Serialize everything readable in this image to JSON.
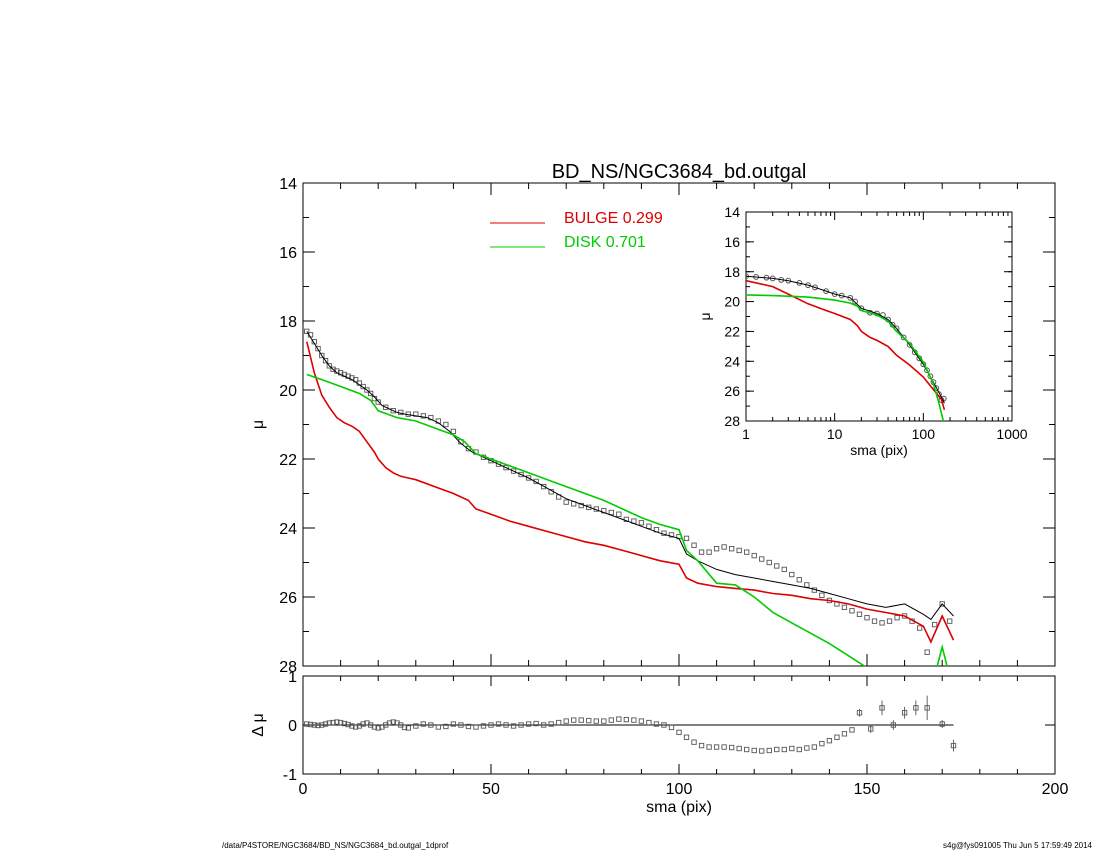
{
  "title": "BD_NS/NGC3684_bd.outgal",
  "footer": {
    "left": "/data/P4STORE/NGC3684/BD_NS/NGC3684_bd.outgal_1dprof",
    "right": "s4g@fys091005  Thu Jun  5 17:59:49 2014"
  },
  "colors": {
    "data": "#555555",
    "model": "#000000",
    "bulge": "#dd0000",
    "disk": "#00cc00",
    "axes": "#000000"
  },
  "chart_data": [
    {
      "id": "main",
      "type": "line",
      "title": "BD_NS/NGC3684_bd.outgal",
      "xlabel": "",
      "ylabel": "μ",
      "xlim": [
        0,
        200
      ],
      "ylim": [
        28,
        14
      ],
      "y_inverted": true,
      "xticks": [
        0,
        50,
        100,
        150,
        200
      ],
      "yticks": [
        14,
        16,
        18,
        20,
        22,
        24,
        26,
        28
      ],
      "legend": [
        {
          "label": "BULGE  0.299",
          "color": "#dd0000"
        },
        {
          "label": "DISK  0.701",
          "color": "#00cc00"
        }
      ],
      "legend_position": "top-center",
      "series": [
        {
          "key": "data",
          "style": "open-squares",
          "x": [
            1,
            2,
            3,
            4,
            5,
            6,
            7,
            8,
            9,
            10,
            11,
            12,
            13,
            14,
            15,
            16,
            17,
            18,
            19,
            20,
            22,
            24,
            26,
            28,
            30,
            32,
            34,
            36,
            38,
            40,
            42,
            44,
            46,
            48,
            50,
            52,
            54,
            56,
            58,
            60,
            62,
            64,
            66,
            68,
            70,
            72,
            74,
            76,
            78,
            80,
            82,
            84,
            86,
            88,
            90,
            92,
            94,
            96,
            98,
            100,
            102,
            104,
            106,
            108,
            110,
            112,
            114,
            116,
            118,
            120,
            122,
            124,
            126,
            128,
            130,
            132,
            134,
            136,
            138,
            140,
            142,
            144,
            146,
            148,
            150,
            152,
            154,
            156,
            158,
            160,
            162,
            164,
            166,
            168,
            170,
            172
          ],
          "y": [
            18.3,
            18.4,
            18.6,
            18.8,
            19.0,
            19.15,
            19.3,
            19.4,
            19.45,
            19.5,
            19.55,
            19.6,
            19.65,
            19.7,
            19.8,
            19.9,
            20.0,
            20.1,
            20.25,
            20.35,
            20.5,
            20.6,
            20.65,
            20.7,
            20.7,
            20.75,
            20.8,
            20.9,
            21.0,
            21.2,
            21.5,
            21.7,
            21.8,
            21.95,
            22.05,
            22.15,
            22.25,
            22.35,
            22.45,
            22.55,
            22.65,
            22.8,
            22.95,
            23.1,
            23.25,
            23.3,
            23.35,
            23.4,
            23.45,
            23.5,
            23.55,
            23.6,
            23.75,
            23.8,
            23.85,
            23.95,
            24.05,
            24.15,
            24.2,
            24.25,
            24.3,
            24.5,
            24.7,
            24.7,
            24.6,
            24.55,
            24.6,
            24.65,
            24.7,
            24.8,
            24.9,
            25.0,
            25.1,
            25.2,
            25.35,
            25.5,
            25.65,
            25.8,
            25.95,
            26.1,
            26.2,
            26.3,
            26.4,
            26.5,
            26.6,
            26.7,
            26.75,
            26.7,
            26.6,
            26.55,
            26.7,
            26.9,
            27.6,
            26.8,
            26.2,
            26.7
          ]
        },
        {
          "key": "model",
          "style": "line",
          "color": "#000000",
          "x": [
            1,
            3,
            5,
            7,
            9,
            11,
            13,
            15,
            17,
            19,
            21,
            23,
            25,
            27,
            30,
            33,
            36,
            39,
            42,
            45,
            50,
            55,
            60,
            65,
            70,
            75,
            80,
            85,
            90,
            95,
            100,
            102,
            105,
            110,
            115,
            120,
            125,
            130,
            135,
            140,
            145,
            150,
            155,
            160,
            165,
            167,
            170,
            173
          ],
          "y": [
            18.3,
            18.65,
            19.0,
            19.3,
            19.5,
            19.6,
            19.7,
            19.85,
            20.0,
            20.2,
            20.45,
            20.55,
            20.65,
            20.7,
            20.75,
            20.8,
            20.95,
            21.2,
            21.55,
            21.8,
            22.05,
            22.3,
            22.55,
            22.85,
            23.15,
            23.35,
            23.55,
            23.75,
            23.95,
            24.15,
            24.3,
            24.75,
            24.95,
            25.2,
            25.35,
            25.45,
            25.55,
            25.65,
            25.75,
            25.9,
            26.05,
            26.2,
            26.3,
            26.2,
            26.5,
            26.65,
            26.2,
            26.55
          ]
        },
        {
          "key": "bulge",
          "style": "line",
          "color": "#dd0000",
          "x": [
            1,
            3,
            5,
            7,
            9,
            11,
            13,
            15,
            17,
            19,
            20,
            22,
            24,
            26,
            28,
            30,
            35,
            40,
            44,
            46,
            50,
            55,
            60,
            65,
            70,
            75,
            80,
            85,
            90,
            95,
            100,
            102,
            105,
            110,
            115,
            120,
            125,
            130,
            135,
            140,
            145,
            150,
            155,
            160,
            165,
            167,
            170,
            173
          ],
          "y": [
            18.6,
            19.5,
            20.15,
            20.5,
            20.8,
            20.95,
            21.05,
            21.2,
            21.5,
            21.8,
            22.0,
            22.25,
            22.4,
            22.5,
            22.55,
            22.6,
            22.8,
            23.0,
            23.2,
            23.45,
            23.6,
            23.8,
            23.95,
            24.1,
            24.25,
            24.4,
            24.5,
            24.65,
            24.8,
            24.95,
            25.05,
            25.45,
            25.6,
            25.7,
            25.75,
            25.8,
            25.9,
            25.95,
            26.05,
            26.1,
            26.2,
            26.35,
            26.45,
            26.55,
            26.85,
            27.3,
            26.55,
            27.25
          ]
        },
        {
          "key": "disk",
          "style": "line",
          "color": "#00cc00",
          "x": [
            1,
            5,
            10,
            15,
            18,
            20,
            25,
            30,
            35,
            40,
            43,
            46,
            50,
            55,
            60,
            65,
            70,
            75,
            80,
            85,
            90,
            95,
            100,
            102,
            105,
            110,
            115,
            120,
            125,
            130,
            135,
            140,
            145,
            150,
            153,
            155,
            158,
            162,
            165,
            167,
            170,
            172
          ],
          "y": [
            19.55,
            19.7,
            19.9,
            20.1,
            20.3,
            20.6,
            20.8,
            20.9,
            21.1,
            21.3,
            21.5,
            21.85,
            22.0,
            22.2,
            22.4,
            22.6,
            22.8,
            23.0,
            23.2,
            23.45,
            23.7,
            23.9,
            24.05,
            24.65,
            24.95,
            25.6,
            25.65,
            26.0,
            26.45,
            26.75,
            27.05,
            27.35,
            27.7,
            28.05,
            28.3,
            28.45,
            28.15,
            28.4,
            28.9,
            28.7,
            27.45,
            28.3
          ]
        }
      ]
    },
    {
      "id": "inset",
      "type": "line",
      "xlabel": "sma (pix)",
      "ylabel": "μ",
      "xscale": "log",
      "xlim": [
        1,
        1000
      ],
      "ylim": [
        28,
        14
      ],
      "y_inverted": true,
      "xticks": [
        1,
        10,
        100,
        1000
      ],
      "yticks": [
        14,
        16,
        18,
        20,
        22,
        24,
        26,
        28
      ],
      "series": [
        {
          "key": "data",
          "style": "open-circles",
          "x": [
            1,
            1.3,
            1.7,
            2,
            2.5,
            3,
            4,
            5,
            6,
            8,
            10,
            12,
            15,
            17,
            20,
            25,
            30,
            35,
            40,
            45,
            50,
            60,
            70,
            80,
            90,
            100,
            110,
            120,
            130,
            140,
            150,
            160,
            170
          ],
          "y": [
            18.3,
            18.35,
            18.4,
            18.45,
            18.55,
            18.6,
            18.75,
            18.9,
            19.05,
            19.3,
            19.5,
            19.6,
            19.75,
            20.0,
            20.45,
            20.75,
            20.8,
            20.9,
            21.2,
            21.55,
            21.8,
            22.4,
            22.9,
            23.4,
            23.8,
            24.2,
            24.6,
            25.0,
            25.4,
            25.8,
            26.2,
            26.6,
            26.5
          ]
        },
        {
          "key": "model",
          "style": "line",
          "color": "#000000",
          "x": [
            1,
            2,
            3,
            5,
            8,
            10,
            15,
            20,
            30,
            40,
            50,
            70,
            100,
            130,
            160,
            173
          ],
          "y": [
            18.3,
            18.45,
            18.6,
            18.9,
            19.3,
            19.5,
            19.75,
            20.45,
            20.8,
            21.2,
            21.8,
            22.9,
            24.2,
            25.4,
            26.4,
            26.8
          ]
        },
        {
          "key": "bulge",
          "style": "line",
          "color": "#dd0000",
          "x": [
            1,
            2,
            3,
            5,
            8,
            10,
            15,
            18,
            20,
            25,
            30,
            40,
            50,
            70,
            100,
            130,
            160,
            173
          ],
          "y": [
            18.6,
            19.0,
            19.5,
            20.15,
            20.6,
            20.8,
            21.2,
            21.6,
            22.0,
            22.4,
            22.6,
            23.0,
            23.6,
            24.25,
            25.05,
            25.9,
            26.55,
            27.25
          ]
        },
        {
          "key": "disk",
          "style": "line",
          "color": "#00cc00",
          "x": [
            1,
            2,
            5,
            10,
            15,
            18,
            20,
            30,
            40,
            50,
            70,
            100,
            130,
            150,
            165,
            173
          ],
          "y": [
            19.55,
            19.6,
            19.7,
            19.9,
            20.1,
            20.3,
            20.6,
            20.9,
            21.3,
            22.0,
            22.8,
            24.05,
            25.5,
            26.8,
            27.8,
            28.3
          ]
        }
      ]
    },
    {
      "id": "residual",
      "type": "scatter",
      "xlabel": "sma (pix)",
      "ylabel": "Δ μ",
      "xlim": [
        0,
        200
      ],
      "ylim": [
        -1,
        1
      ],
      "xticks": [
        0,
        50,
        100,
        150,
        200
      ],
      "yticks": [
        -1,
        0,
        1
      ],
      "series": [
        {
          "key": "residual",
          "style": "open-squares",
          "x": [
            1,
            2,
            3,
            4,
            5,
            6,
            7,
            8,
            9,
            10,
            11,
            12,
            13,
            14,
            15,
            16,
            17,
            18,
            19,
            20,
            21,
            22,
            23,
            24,
            25,
            26,
            27,
            28,
            30,
            32,
            34,
            36,
            38,
            40,
            42,
            44,
            46,
            48,
            50,
            52,
            54,
            56,
            58,
            60,
            62,
            64,
            66,
            68,
            70,
            72,
            74,
            76,
            78,
            80,
            82,
            84,
            86,
            88,
            90,
            92,
            94,
            96,
            98,
            100,
            102,
            104,
            106,
            108,
            110,
            112,
            114,
            116,
            118,
            120,
            122,
            124,
            126,
            128,
            130,
            132,
            134,
            136,
            138,
            140,
            142,
            144,
            146
          ],
          "y": [
            0.02,
            0.01,
            0.0,
            -0.01,
            0.0,
            0.02,
            0.04,
            0.05,
            0.06,
            0.05,
            0.03,
            0.01,
            -0.02,
            -0.04,
            -0.02,
            0.02,
            0.04,
            0.0,
            -0.04,
            -0.06,
            -0.04,
            0.0,
            0.04,
            0.06,
            0.04,
            0.0,
            -0.05,
            -0.06,
            -0.02,
            0.02,
            0.0,
            -0.04,
            -0.03,
            0.02,
            0.0,
            -0.03,
            -0.04,
            -0.02,
            0.0,
            0.02,
            0.0,
            -0.02,
            0.0,
            0.02,
            0.03,
            0.0,
            0.02,
            0.05,
            0.08,
            0.1,
            0.1,
            0.09,
            0.08,
            0.08,
            0.1,
            0.12,
            0.11,
            0.1,
            0.08,
            0.05,
            0.02,
            0.0,
            -0.05,
            -0.15,
            -0.25,
            -0.35,
            -0.42,
            -0.45,
            -0.45,
            -0.45,
            -0.46,
            -0.48,
            -0.5,
            -0.52,
            -0.53,
            -0.52,
            -0.5,
            -0.5,
            -0.48,
            -0.5,
            -0.47,
            -0.45,
            -0.38,
            -0.32,
            -0.25,
            -0.18,
            -0.1
          ]
        },
        {
          "key": "residual-errorbars",
          "style": "squares-with-errorbars",
          "x": [
            148,
            151,
            154,
            157,
            160,
            163,
            166,
            170,
            173
          ],
          "y": [
            0.25,
            -0.08,
            0.35,
            0.0,
            0.25,
            0.35,
            0.35,
            0.02,
            -0.42
          ],
          "err": [
            0.08,
            0.08,
            0.15,
            0.1,
            0.12,
            0.15,
            0.25,
            0.08,
            0.12
          ]
        }
      ]
    }
  ]
}
